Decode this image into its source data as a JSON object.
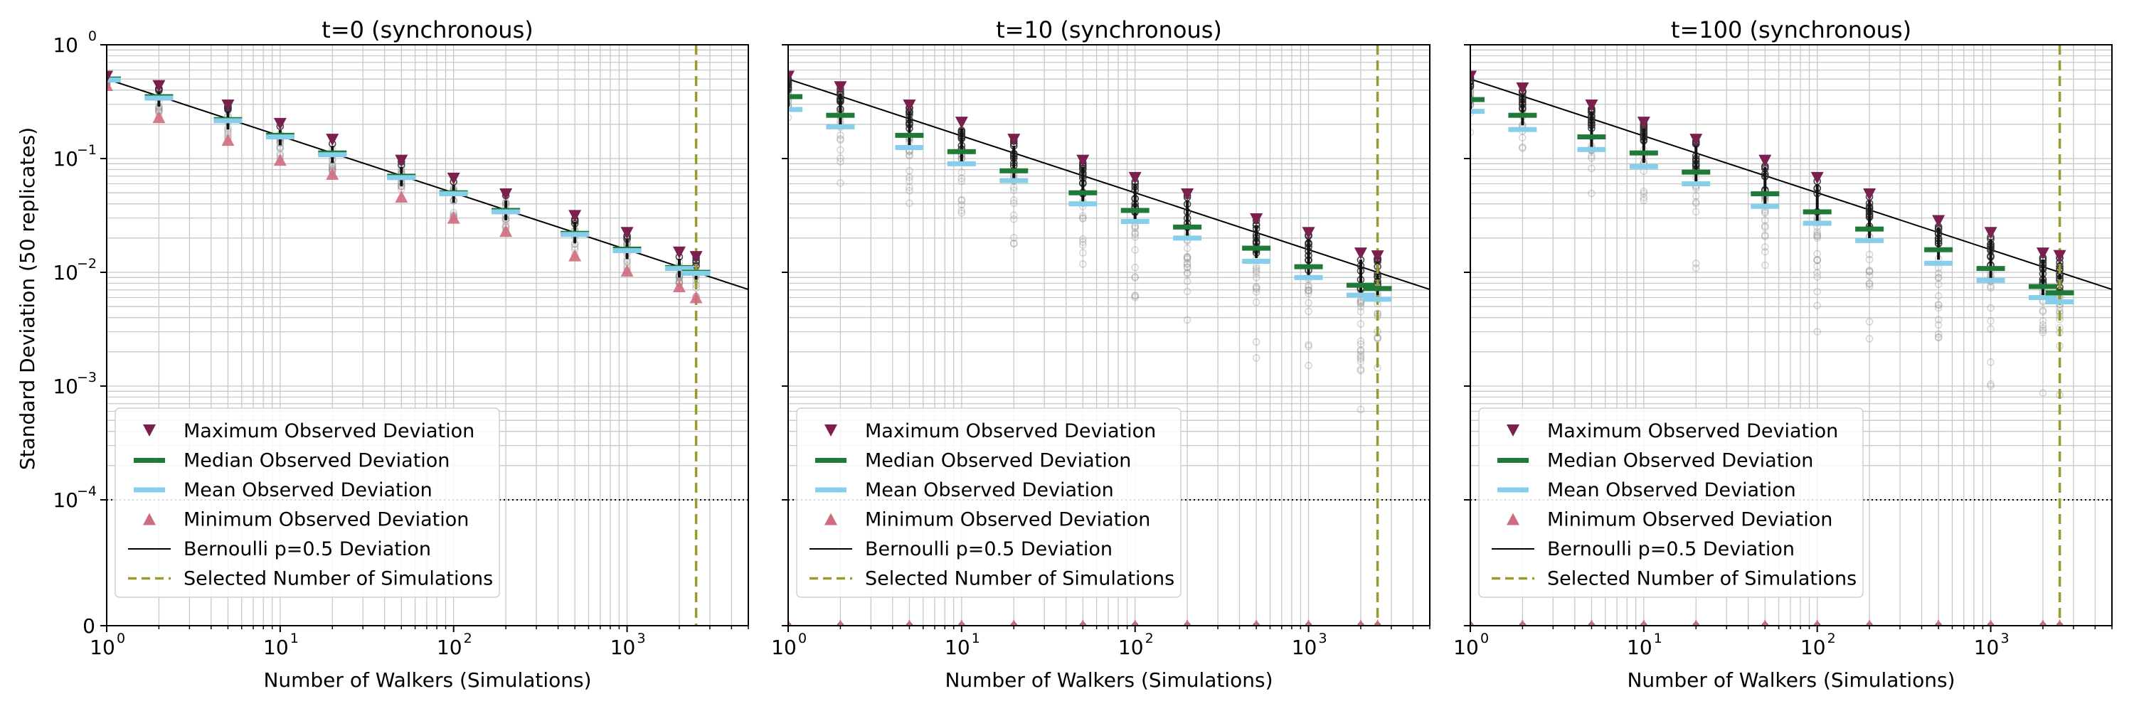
{
  "figure": {
    "ylabel": "Standard Deviation (50 replicates)",
    "xlabel": "Number of Walkers (Simulations)",
    "legend": [
      {
        "key": "max",
        "label": "Maximum Observed Deviation"
      },
      {
        "key": "median",
        "label": "Median Observed Deviation"
      },
      {
        "key": "mean",
        "label": "Mean Observed Deviation"
      },
      {
        "key": "min",
        "label": "Minimum Observed Deviation"
      },
      {
        "key": "bernoulli",
        "label": "Bernoulli p=0.5 Deviation"
      },
      {
        "key": "selected",
        "label": "Selected Number of Simulations"
      }
    ],
    "y_tick_labels": [
      {
        "value": 1,
        "label": "10",
        "exp": "0"
      },
      {
        "value": 0.1,
        "label": "10",
        "exp": "−1"
      },
      {
        "value": 0.01,
        "label": "10",
        "exp": "−2"
      },
      {
        "value": 0.001,
        "label": "10",
        "exp": "−3"
      },
      {
        "value": 0.0001,
        "label": "10",
        "exp": "−4"
      },
      {
        "value": 0,
        "label": "0",
        "exp": ""
      }
    ],
    "x_tick_labels": [
      {
        "value": 1,
        "label": "10",
        "exp": "0"
      },
      {
        "value": 10,
        "label": "10",
        "exp": "1"
      },
      {
        "value": 100,
        "label": "10",
        "exp": "2"
      },
      {
        "value": 1000,
        "label": "10",
        "exp": "3"
      }
    ]
  },
  "chart_data": [
    {
      "type": "scatter",
      "title": "t=0 (synchronous)",
      "xscale": "log",
      "yscale": "symlog",
      "xlim": [
        1,
        5000
      ],
      "ylim": [
        0,
        1
      ],
      "linthresh": 0.0001,
      "grid": true,
      "legend_position": "lower-left",
      "x": [
        1,
        2,
        5,
        10,
        20,
        50,
        100,
        200,
        500,
        1000,
        2000,
        2500
      ],
      "series": [
        {
          "name": "Maximum Observed Deviation",
          "values": [
            0.52,
            0.43,
            0.29,
            0.2,
            0.145,
            0.095,
            0.066,
            0.048,
            0.031,
            0.022,
            0.0148,
            0.0135
          ]
        },
        {
          "name": "Median Observed Deviation",
          "values": [
            0.5,
            0.35,
            0.22,
            0.16,
            0.112,
            0.07,
            0.05,
            0.035,
            0.022,
            0.016,
            0.011,
            0.01
          ]
        },
        {
          "name": "Mean Observed Deviation",
          "values": [
            0.49,
            0.34,
            0.215,
            0.155,
            0.108,
            0.068,
            0.049,
            0.034,
            0.0215,
            0.0155,
            0.0108,
            0.0098
          ]
        },
        {
          "name": "Minimum Observed Deviation",
          "values": [
            0.44,
            0.23,
            0.145,
            0.097,
            0.073,
            0.046,
            0.03,
            0.023,
            0.014,
            0.0103,
            0.0075,
            0.006
          ]
        },
        {
          "name": "Bernoulli p=0.5 Deviation",
          "function": "0.5/sqrt(x)"
        },
        {
          "name": "Selected Number of Simulations",
          "x_value": 2500
        }
      ],
      "replicate_spread": [
        0.74,
        0.72,
        0.72,
        0.72,
        0.75,
        0.73,
        0.74,
        0.76,
        0.75,
        0.76,
        0.78,
        0.8
      ],
      "zero_points": false
    },
    {
      "type": "scatter",
      "title": "t=10 (synchronous)",
      "xscale": "log",
      "yscale": "symlog",
      "xlim": [
        1,
        5000
      ],
      "ylim": [
        0,
        1
      ],
      "linthresh": 0.0001,
      "grid": true,
      "legend_position": "lower-left",
      "x": [
        1,
        2,
        5,
        10,
        20,
        50,
        100,
        200,
        500,
        1000,
        2000,
        2500
      ],
      "series": [
        {
          "name": "Maximum Observed Deviation",
          "values": [
            0.52,
            0.42,
            0.29,
            0.205,
            0.145,
            0.095,
            0.067,
            0.048,
            0.029,
            0.022,
            0.0145,
            0.0137
          ]
        },
        {
          "name": "Median Observed Deviation",
          "values": [
            0.35,
            0.24,
            0.16,
            0.115,
            0.078,
            0.05,
            0.035,
            0.025,
            0.0163,
            0.0112,
            0.0077,
            0.0072
          ]
        },
        {
          "name": "Mean Observed Deviation",
          "values": [
            0.27,
            0.19,
            0.125,
            0.09,
            0.064,
            0.04,
            0.028,
            0.02,
            0.0125,
            0.009,
            0.0063,
            0.0058
          ]
        },
        {
          "name": "Minimum Observed Deviation",
          "values": [
            0,
            0,
            0,
            0,
            0,
            0,
            0,
            0,
            0,
            0,
            0,
            0
          ]
        },
        {
          "name": "Bernoulli p=0.5 Deviation",
          "function": "0.5/sqrt(x)"
        },
        {
          "name": "Selected Number of Simulations",
          "x_value": 2500
        }
      ],
      "replicate_low": [
        0.14,
        0.045,
        0.028,
        0.014,
        0.007,
        0.003,
        0.0015,
        0.0012,
        0.0008,
        0.0005,
        0.0004,
        0.0004
      ],
      "zero_points": true
    },
    {
      "type": "scatter",
      "title": "t=100 (synchronous)",
      "xscale": "log",
      "yscale": "symlog",
      "xlim": [
        1,
        5000
      ],
      "ylim": [
        0,
        1
      ],
      "linthresh": 0.0001,
      "grid": true,
      "legend_position": "lower-left",
      "x": [
        1,
        2,
        5,
        10,
        20,
        50,
        100,
        200,
        500,
        1000,
        2000,
        2500
      ],
      "series": [
        {
          "name": "Maximum Observed Deviation",
          "values": [
            0.52,
            0.41,
            0.29,
            0.205,
            0.145,
            0.095,
            0.067,
            0.048,
            0.028,
            0.022,
            0.0145,
            0.0138
          ]
        },
        {
          "name": "Median Observed Deviation",
          "values": [
            0.33,
            0.24,
            0.155,
            0.112,
            0.076,
            0.049,
            0.034,
            0.024,
            0.0158,
            0.0108,
            0.0075,
            0.0066
          ]
        },
        {
          "name": "Mean Observed Deviation",
          "values": [
            0.26,
            0.18,
            0.12,
            0.085,
            0.06,
            0.038,
            0.027,
            0.019,
            0.012,
            0.0085,
            0.006,
            0.0055
          ]
        },
        {
          "name": "Minimum Observed Deviation",
          "values": [
            0,
            0,
            0,
            0,
            0,
            0,
            0,
            0,
            0,
            0,
            0,
            0
          ]
        },
        {
          "name": "Bernoulli p=0.5 Deviation",
          "function": "0.5/sqrt(x)"
        },
        {
          "name": "Selected Number of Simulations",
          "x_value": 2500
        }
      ],
      "replicate_low": [
        0.14,
        0.05,
        0.03,
        0.015,
        0.007,
        0.003,
        0.0015,
        0.0012,
        0.0008,
        0.0005,
        0.0004,
        0.0004
      ],
      "zero_points": true
    }
  ],
  "colors": {
    "max": "#7a1f4e",
    "median": "#1e7a36",
    "mean": "#87ceeb",
    "min": "#cf6b7e",
    "bernoulli": "#000000",
    "selected": "#9a9a2e",
    "grid": "#c8c8c8",
    "replicate": "#8c8c8c"
  }
}
